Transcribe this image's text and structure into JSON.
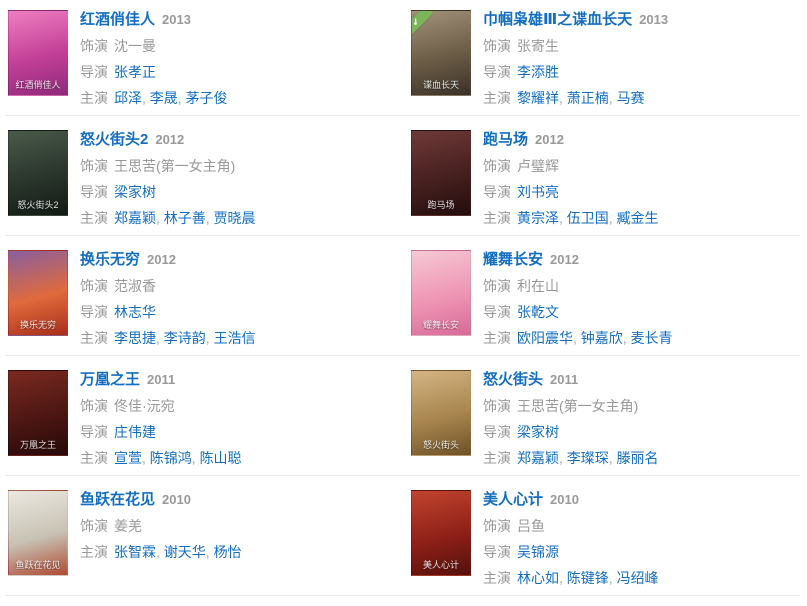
{
  "labels": {
    "plays": "饰演",
    "director": "导演",
    "starring": "主演",
    "separator": ", "
  },
  "colors": {
    "link": "#136ec2",
    "muted": "#999999",
    "divider": "#ebebeb",
    "badge_green": "#7cb45a"
  },
  "badge": {
    "check": "✔"
  },
  "entries": [
    {
      "title": "红酒俏佳人",
      "year": "2013",
      "role": "沈一曼",
      "directors": [
        "张孝正"
      ],
      "stars": [
        "邱泽",
        "李晟",
        "茅子俊"
      ],
      "poster": {
        "caption": "红酒俏佳人",
        "colors": [
          "#ef7fc0",
          "#c23f97",
          "#8e2a7b"
        ],
        "badge": false
      }
    },
    {
      "title": "巾帼枭雄Ⅲ之谍血长天",
      "year": "2013",
      "role": "张寄生",
      "directors": [
        "李添胜"
      ],
      "stars": [
        "黎耀祥",
        "萧正楠",
        "马赛"
      ],
      "poster": {
        "caption": "谍血长天",
        "colors": [
          "#a3927a",
          "#6b5c46",
          "#3a3128"
        ],
        "badge": true
      }
    },
    {
      "title": "怒火街头2",
      "year": "2012",
      "role": "王思苦(第一女主角)",
      "directors": [
        "梁家树"
      ],
      "stars": [
        "郑嘉颖",
        "林子善",
        "贾晓晨"
      ],
      "poster": {
        "caption": "怒火街头2",
        "colors": [
          "#4a5a4a",
          "#2a352c",
          "#121a14"
        ],
        "badge": false
      }
    },
    {
      "title": "跑马场",
      "year": "2012",
      "role": "卢璧辉",
      "directors": [
        "刘书亮"
      ],
      "stars": [
        "黄宗泽",
        "伍卫国",
        "臧金生"
      ],
      "poster": {
        "caption": "跑马场",
        "colors": [
          "#6e3a38",
          "#46201f",
          "#240d0e"
        ],
        "badge": false
      }
    },
    {
      "title": "换乐无穷",
      "year": "2012",
      "role": "范淑香",
      "directors": [
        "林志华"
      ],
      "stars": [
        "李思捷",
        "李诗韵",
        "王浩信"
      ],
      "poster": {
        "caption": "换乐无穷",
        "colors": [
          "#8a5f9e",
          "#e06a3c",
          "#a72e1c"
        ],
        "badge": false
      }
    },
    {
      "title": "耀舞长安",
      "year": "2012",
      "role": "利在山",
      "directors": [
        "张乾文"
      ],
      "stars": [
        "欧阳震华",
        "钟嘉欣",
        "麦长青"
      ],
      "poster": {
        "caption": "耀舞长安",
        "colors": [
          "#f6c8d4",
          "#ee96b4",
          "#d86a98"
        ],
        "badge": false
      }
    },
    {
      "title": "万凰之王",
      "year": "2011",
      "role": "佟佳·沅宛",
      "directors": [
        "庄伟建"
      ],
      "stars": [
        "宣萱",
        "陈锦鸿",
        "陈山聪"
      ],
      "poster": {
        "caption": "万凰之王",
        "colors": [
          "#7a2a20",
          "#4c1613",
          "#260a08"
        ],
        "badge": false
      }
    },
    {
      "title": "怒火街头",
      "year": "2011",
      "role": "王思苦(第一女主角)",
      "directors": [
        "梁家树"
      ],
      "stars": [
        "郑嘉颖",
        "李璨琛",
        "滕丽名"
      ],
      "poster": {
        "caption": "怒火街头",
        "colors": [
          "#d4b584",
          "#a8854e",
          "#6e5228"
        ],
        "badge": false
      }
    },
    {
      "title": "鱼跃在花见",
      "year": "2010",
      "role": "姜羌",
      "directors": [],
      "stars": [
        "张智霖",
        "谢天华",
        "杨怡"
      ],
      "poster": {
        "caption": "鱼跃在花见",
        "colors": [
          "#ece8e0",
          "#c8c2b4",
          "#b04a34"
        ],
        "badge": false
      }
    },
    {
      "title": "美人心计",
      "year": "2010",
      "role": "吕鱼",
      "directors": [
        "吴锦源"
      ],
      "stars": [
        "林心如",
        "陈键锋",
        "冯绍峰"
      ],
      "poster": {
        "caption": "美人心计",
        "colors": [
          "#c2452e",
          "#8e2018",
          "#55100c"
        ],
        "badge": false
      }
    }
  ]
}
